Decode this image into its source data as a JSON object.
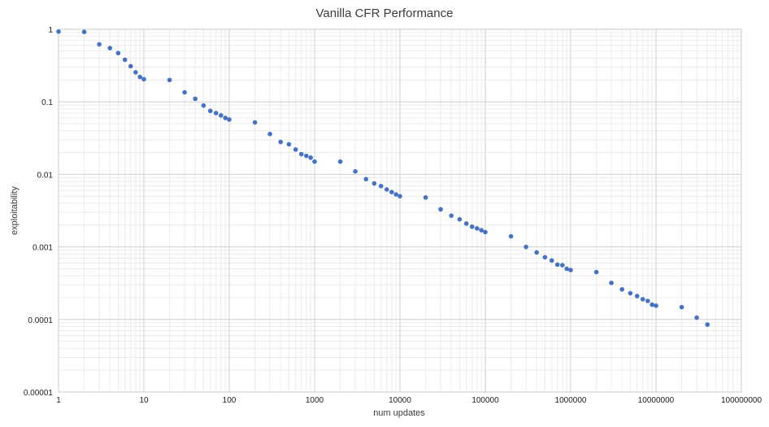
{
  "chart_data": {
    "type": "scatter",
    "title": "Vanilla CFR Performance",
    "xlabel": "num updates",
    "ylabel": "exploitability",
    "x_scale": "log",
    "y_scale": "log",
    "xlim": [
      1,
      100000000
    ],
    "ylim": [
      1e-05,
      1
    ],
    "x_ticks": [
      "1",
      "10",
      "100",
      "1000",
      "10000",
      "100000",
      "1000000",
      "10000000",
      "100000000"
    ],
    "y_ticks": [
      "1",
      "0.1",
      "0.01",
      "0.001",
      "0.0001",
      "0.00001"
    ],
    "grid": true,
    "legend": "none",
    "series": [
      {
        "color": "#4472c4",
        "points": [
          [
            1,
            0.93
          ],
          [
            2,
            0.92
          ],
          [
            3,
            0.62
          ],
          [
            4,
            0.55
          ],
          [
            5,
            0.47
          ],
          [
            6,
            0.38
          ],
          [
            7,
            0.31
          ],
          [
            8,
            0.255
          ],
          [
            9,
            0.22
          ],
          [
            10,
            0.205
          ],
          [
            20,
            0.2
          ],
          [
            30,
            0.135
          ],
          [
            40,
            0.11
          ],
          [
            50,
            0.089
          ],
          [
            60,
            0.075
          ],
          [
            70,
            0.07
          ],
          [
            80,
            0.065
          ],
          [
            90,
            0.06
          ],
          [
            100,
            0.057
          ],
          [
            200,
            0.052
          ],
          [
            300,
            0.036
          ],
          [
            400,
            0.028
          ],
          [
            500,
            0.026
          ],
          [
            600,
            0.022
          ],
          [
            700,
            0.019
          ],
          [
            800,
            0.018
          ],
          [
            900,
            0.017
          ],
          [
            1000,
            0.015
          ],
          [
            2000,
            0.015
          ],
          [
            3000,
            0.011
          ],
          [
            4000,
            0.0086
          ],
          [
            5000,
            0.0075
          ],
          [
            6000,
            0.0069
          ],
          [
            7000,
            0.0062
          ],
          [
            8000,
            0.0057
          ],
          [
            9000,
            0.0053
          ],
          [
            10000,
            0.005
          ],
          [
            20000,
            0.0048
          ],
          [
            30000,
            0.0033
          ],
          [
            40000,
            0.0027
          ],
          [
            50000,
            0.0024
          ],
          [
            60000,
            0.0021
          ],
          [
            70000,
            0.0019
          ],
          [
            80000,
            0.0018
          ],
          [
            90000,
            0.0017
          ],
          [
            100000,
            0.0016
          ],
          [
            200000,
            0.0014
          ],
          [
            300000,
            0.001
          ],
          [
            400000,
            0.00084
          ],
          [
            500000,
            0.00072
          ],
          [
            600000,
            0.00065
          ],
          [
            700000,
            0.00057
          ],
          [
            800000,
            0.00056
          ],
          [
            900000,
            0.0005
          ],
          [
            1000000,
            0.00048
          ],
          [
            2000000,
            0.00045
          ],
          [
            3000000,
            0.00032
          ],
          [
            4000000,
            0.00026
          ],
          [
            5000000,
            0.00023
          ],
          [
            6000000,
            0.00021
          ],
          [
            7000000,
            0.00019
          ],
          [
            8000000,
            0.00018
          ],
          [
            9000000,
            0.00016
          ],
          [
            10000000,
            0.000155
          ],
          [
            20000000,
            0.000148
          ],
          [
            30000000,
            0.000106
          ],
          [
            40000000,
            8.5e-05
          ]
        ]
      }
    ]
  }
}
